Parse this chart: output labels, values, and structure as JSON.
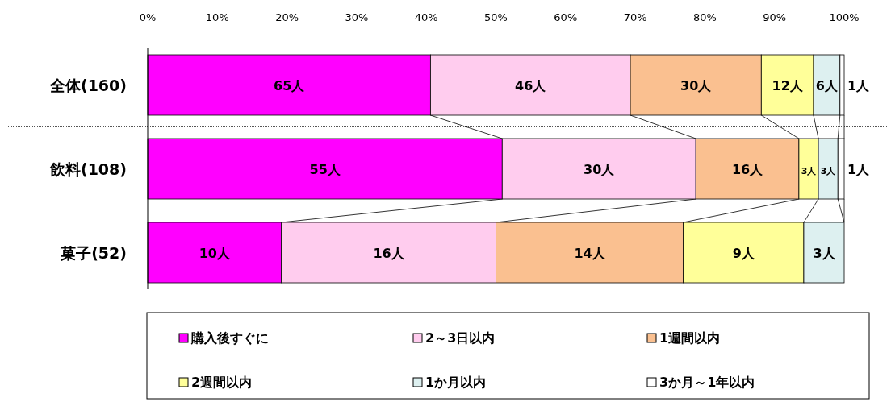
{
  "chart_data": {
    "type": "bar",
    "orientation": "horizontal",
    "stacked": true,
    "categories": [
      "全体(160)",
      "飲料(108)",
      "菓子(52)"
    ],
    "xlim": [
      0,
      100
    ],
    "xticks": [
      {
        "value": 0,
        "label": "0%"
      },
      {
        "value": 10,
        "label": "10%"
      },
      {
        "value": 20,
        "label": "20%"
      },
      {
        "value": 30,
        "label": "30%"
      },
      {
        "value": 40,
        "label": "40%"
      },
      {
        "value": 50,
        "label": "50%"
      },
      {
        "value": 60,
        "label": "60%"
      },
      {
        "value": 70,
        "label": "70%"
      },
      {
        "value": 80,
        "label": "80%"
      },
      {
        "value": 90,
        "label": "90%"
      },
      {
        "value": 100,
        "label": "100%"
      }
    ],
    "series": [
      {
        "name": "購入後すぐに",
        "color": "#ff00ff",
        "values": [
          40.6,
          50.9,
          19.2
        ]
      },
      {
        "name": "2～3日以内",
        "color": "#ffccee",
        "values": [
          28.7,
          27.8,
          30.8
        ]
      },
      {
        "name": "1週間以内",
        "color": "#fac090",
        "values": [
          18.8,
          14.8,
          26.9
        ]
      },
      {
        "name": "2週間以内",
        "color": "#ffff99",
        "values": [
          7.5,
          2.8,
          17.3
        ]
      },
      {
        "name": "1か月以内",
        "color": "#ddf0f0",
        "values": [
          3.8,
          2.8,
          5.8
        ]
      },
      {
        "name": "3か月～1年以内",
        "color": "#ffffff",
        "values": [
          0.6,
          0.9,
          0
        ]
      }
    ],
    "annotations": [
      "65人",
      "46人",
      "30人",
      "12人",
      "6人",
      "1人",
      "55人",
      "30人",
      "16人",
      "3人",
      "3人",
      "1人",
      "10人",
      "16人",
      "14人",
      "9人",
      "3人"
    ],
    "legend": "bottom",
    "grid": false
  }
}
